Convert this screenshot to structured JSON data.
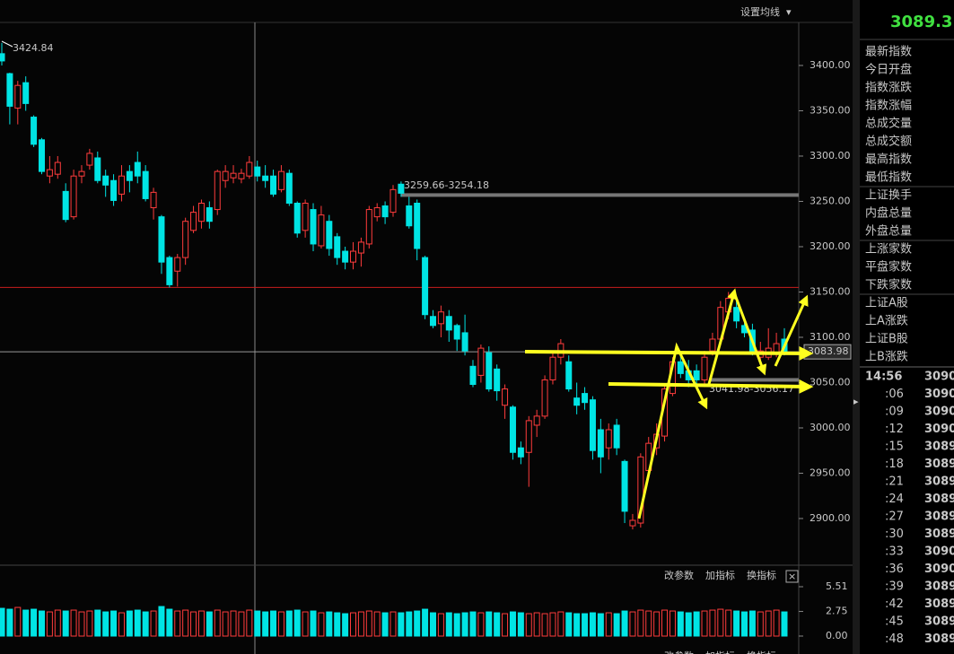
{
  "toolbar": {
    "ma_button": "设置均线"
  },
  "chart_data": [
    {
      "type": "candlestick",
      "up_color": "#ff3c3c",
      "down_color": "#00e4e4",
      "open": [
        3413,
        3391,
        3353,
        3381,
        3343,
        3318,
        3278,
        3280,
        3261,
        3233,
        3278,
        3290,
        3298,
        3278,
        3273,
        3258,
        3283,
        3293,
        3283,
        3243,
        3233,
        3188,
        3173,
        3188,
        3218,
        3228,
        3243,
        3241,
        3273,
        3276,
        3275,
        3278,
        3288,
        3278,
        3278,
        3263,
        3281,
        3248,
        3218,
        3241,
        3201,
        3228,
        3211,
        3195,
        3183,
        3193,
        3203,
        3233,
        3245,
        3238,
        3269,
        3245,
        3248,
        3188,
        3123,
        3115,
        3123,
        3113,
        3105,
        3068,
        3058,
        3083,
        3065,
        3025,
        3023,
        2978,
        2973,
        3003,
        3013,
        3053,
        3078,
        3073,
        3033,
        3038,
        3031,
        2998,
        2978,
        3003,
        2963,
        2892,
        2895,
        2953,
        2978,
        2991,
        3038,
        3073,
        3063,
        3063,
        3053,
        3085,
        3098,
        3128,
        3133,
        3113,
        3108,
        3078,
        3078,
        3083,
        3098
      ],
      "high": [
        3424.84,
        3392,
        3383,
        3388,
        3345,
        3320,
        3300,
        3300,
        3270,
        3285,
        3290,
        3308,
        3305,
        3285,
        3280,
        3290,
        3290,
        3305,
        3290,
        3265,
        3235,
        3190,
        3192,
        3232,
        3245,
        3252,
        3250,
        3285,
        3290,
        3290,
        3286,
        3300,
        3295,
        3290,
        3285,
        3290,
        3285,
        3250,
        3252,
        3248,
        3245,
        3235,
        3215,
        3200,
        3205,
        3210,
        3245,
        3248,
        3250,
        3268,
        3272,
        3255,
        3252,
        3190,
        3130,
        3135,
        3130,
        3115,
        3125,
        3075,
        3092,
        3090,
        3070,
        3048,
        3025,
        2985,
        3013,
        3020,
        3058,
        3083,
        3098,
        3080,
        3050,
        3045,
        3035,
        3010,
        3005,
        3010,
        2965,
        2905,
        2972,
        2990,
        3005,
        3048,
        3078,
        3080,
        3075,
        3070,
        3085,
        3105,
        3140,
        3150,
        3140,
        3120,
        3115,
        3095,
        3110,
        3105,
        3110
      ],
      "low": [
        3400,
        3335,
        3335,
        3350,
        3310,
        3280,
        3270,
        3275,
        3227,
        3230,
        3270,
        3285,
        3270,
        3255,
        3245,
        3250,
        3260,
        3270,
        3250,
        3230,
        3170,
        3155,
        3156,
        3180,
        3215,
        3220,
        3220,
        3235,
        3265,
        3270,
        3270,
        3275,
        3272,
        3265,
        3255,
        3260,
        3245,
        3210,
        3210,
        3195,
        3198,
        3190,
        3180,
        3175,
        3175,
        3178,
        3198,
        3228,
        3225,
        3233,
        3255,
        3220,
        3185,
        3120,
        3110,
        3100,
        3095,
        3085,
        3080,
        3045,
        3050,
        3040,
        3030,
        3010,
        2965,
        2960,
        2935,
        2990,
        3010,
        3048,
        3070,
        3040,
        3015,
        3020,
        2965,
        2950,
        2965,
        2970,
        2895,
        2888,
        2890,
        2945,
        2970,
        2985,
        3035,
        3055,
        3045,
        3048,
        3045,
        3080,
        3095,
        3120,
        3110,
        3100,
        3080,
        3070,
        3075,
        3078,
        3080
      ],
      "close": [
        3405,
        3355,
        3378,
        3358,
        3313,
        3283,
        3285,
        3293,
        3230,
        3278,
        3283,
        3303,
        3273,
        3268,
        3251,
        3278,
        3273,
        3278,
        3253,
        3260,
        3183,
        3158,
        3188,
        3228,
        3238,
        3248,
        3228,
        3283,
        3283,
        3281,
        3281,
        3293,
        3278,
        3273,
        3258,
        3283,
        3248,
        3215,
        3248,
        3203,
        3235,
        3198,
        3188,
        3183,
        3195,
        3205,
        3241,
        3243,
        3233,
        3263,
        3259,
        3223,
        3198,
        3125,
        3113,
        3128,
        3108,
        3098,
        3085,
        3048,
        3088,
        3043,
        3041,
        3043,
        2973,
        2968,
        3008,
        3013,
        3053,
        3078,
        3093,
        3043,
        3025,
        3028,
        2975,
        2968,
        2998,
        2978,
        2908,
        2898,
        2968,
        2983,
        2993,
        3043,
        3073,
        3060,
        3053,
        3053,
        3078,
        3098,
        3133,
        3143,
        3118,
        3105,
        3083,
        3085,
        3088,
        3093,
        3083.98
      ],
      "ylim": [
        2848.5,
        3447.5
      ],
      "yticks": [
        {
          "value": 3400,
          "label": "3400.00"
        },
        {
          "value": 3350,
          "label": "3350.00"
        },
        {
          "value": 3300,
          "label": "3300.00"
        },
        {
          "value": 3250,
          "label": "3250.00"
        },
        {
          "value": 3200,
          "label": "3200.00"
        },
        {
          "value": 3150,
          "label": "3150.00"
        },
        {
          "value": 3100,
          "label": "3100.00"
        },
        {
          "value": 3050,
          "label": "3050.00"
        },
        {
          "value": 3000,
          "label": "3000.00"
        },
        {
          "value": 2950,
          "label": "2950.00"
        },
        {
          "value": 2900,
          "label": "2900.00"
        }
      ],
      "hline": 3155,
      "hline_color": "#c81e1e",
      "price_line": 3083.98,
      "bands": [
        3257,
        3053
      ],
      "annotations": [
        "3424.84",
        "3259.66-3254.18",
        "3041.98-3056.17"
      ]
    },
    {
      "type": "bar",
      "indicator_bar": [
        "改参数",
        "加指标",
        "换指标"
      ],
      "values": [
        3.1,
        3.0,
        3.2,
        2.9,
        3.0,
        2.8,
        2.7,
        2.9,
        2.8,
        2.9,
        2.7,
        2.8,
        2.9,
        2.7,
        2.8,
        2.6,
        2.8,
        2.9,
        2.7,
        2.8,
        3.3,
        3.0,
        2.8,
        2.9,
        2.7,
        2.8,
        2.7,
        2.9,
        2.7,
        2.8,
        2.7,
        2.9,
        2.8,
        2.7,
        2.8,
        2.7,
        2.8,
        2.9,
        2.7,
        2.8,
        2.6,
        2.7,
        2.6,
        2.5,
        2.6,
        2.7,
        2.8,
        2.7,
        2.6,
        2.7,
        2.6,
        2.7,
        2.8,
        3.0,
        2.6,
        2.5,
        2.6,
        2.5,
        2.6,
        2.7,
        2.6,
        2.7,
        2.6,
        2.5,
        2.7,
        2.6,
        2.5,
        2.6,
        2.5,
        2.6,
        2.7,
        2.6,
        2.5,
        2.5,
        2.6,
        2.5,
        2.6,
        2.5,
        2.8,
        2.7,
        2.9,
        2.8,
        2.7,
        2.9,
        2.8,
        2.7,
        2.6,
        2.7,
        2.8,
        2.9,
        3.0,
        2.9,
        2.8,
        2.7,
        2.8,
        2.7,
        2.8,
        2.9,
        2.7
      ],
      "ylim": [
        -0.9,
        6.11
      ],
      "yticks": [
        5.51,
        2.75,
        {
          "value": 0,
          "label": "0.00"
        }
      ]
    }
  ],
  "sidebar": {
    "price": "3089.31",
    "labels": [
      "最新指数",
      "今日开盘",
      "指数涨跌",
      "指数涨幅",
      "总成交量",
      "总成交额",
      "最高指数",
      "最低指数",
      "上证换手",
      "内盘总量",
      "外盘总量",
      "上涨家数",
      "平盘家数",
      "下跌家数",
      "上证A股",
      "上A涨跌",
      "上证B股",
      "上B涨跌"
    ],
    "ticks": [
      [
        "14:56",
        "3090"
      ],
      [
        ":06",
        "3090"
      ],
      [
        ":09",
        "3090"
      ],
      [
        ":12",
        "3090"
      ],
      [
        ":15",
        "3089"
      ],
      [
        ":18",
        "3089"
      ],
      [
        ":21",
        "3089"
      ],
      [
        ":24",
        "3089"
      ],
      [
        ":27",
        "3089"
      ],
      [
        ":30",
        "3089"
      ],
      [
        ":33",
        "3090"
      ],
      [
        ":36",
        "3090"
      ],
      [
        ":39",
        "3089"
      ],
      [
        ":42",
        "3089"
      ],
      [
        ":45",
        "3089"
      ],
      [
        ":48",
        "3089"
      ]
    ]
  }
}
